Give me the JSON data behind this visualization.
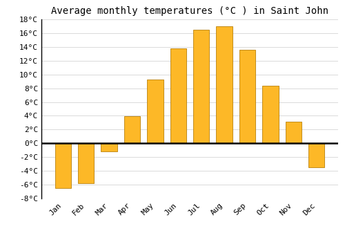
{
  "title": "Average monthly temperatures (°C ) in Saint John",
  "months": [
    "Jan",
    "Feb",
    "Mar",
    "Apr",
    "May",
    "Jun",
    "Jul",
    "Aug",
    "Sep",
    "Oct",
    "Nov",
    "Dec"
  ],
  "values": [
    -6.5,
    -5.8,
    -1.2,
    3.9,
    9.3,
    13.8,
    16.5,
    17.0,
    13.6,
    8.4,
    3.1,
    -3.5
  ],
  "bar_color": "#FDB827",
  "bar_edge_color": "#B8800A",
  "ylim": [
    -8,
    18
  ],
  "yticks": [
    -8,
    -6,
    -4,
    -2,
    0,
    2,
    4,
    6,
    8,
    10,
    12,
    14,
    16,
    18
  ],
  "background_color": "#FFFFFF",
  "grid_color": "#CCCCCC",
  "title_fontsize": 10,
  "tick_fontsize": 8,
  "zero_line_color": "#000000"
}
